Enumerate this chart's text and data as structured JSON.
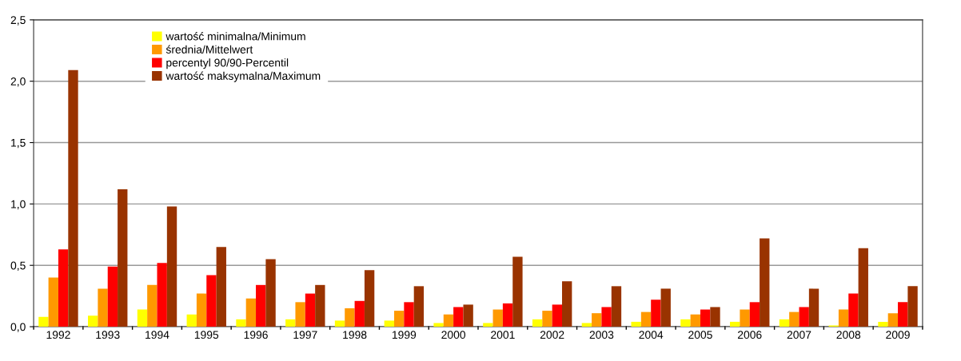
{
  "chart_data": {
    "type": "bar",
    "categories": [
      "1992",
      "1993",
      "1994",
      "1995",
      "1996",
      "1997",
      "1998",
      "1999",
      "2000",
      "2001",
      "2002",
      "2003",
      "2004",
      "2005",
      "2006",
      "2007",
      "2008",
      "2009"
    ],
    "series": [
      {
        "name": "wartość minimalna/Minimum",
        "color": "#ffff00",
        "values": [
          0.08,
          0.09,
          0.14,
          0.1,
          0.06,
          0.06,
          0.05,
          0.05,
          0.03,
          0.03,
          0.06,
          0.03,
          0.04,
          0.06,
          0.04,
          0.06,
          0.01,
          0.04
        ]
      },
      {
        "name": "średnia/Mittelwert",
        "color": "#ff9900",
        "values": [
          0.4,
          0.31,
          0.34,
          0.27,
          0.23,
          0.2,
          0.15,
          0.13,
          0.1,
          0.14,
          0.13,
          0.11,
          0.12,
          0.1,
          0.14,
          0.12,
          0.14,
          0.11
        ]
      },
      {
        "name": "percentyl 90/90-Percentil",
        "color": "#ff0000",
        "values": [
          0.63,
          0.49,
          0.52,
          0.42,
          0.34,
          0.27,
          0.21,
          0.2,
          0.16,
          0.19,
          0.18,
          0.16,
          0.22,
          0.14,
          0.2,
          0.16,
          0.27,
          0.2
        ]
      },
      {
        "name": "wartość maksymalna/Maximum",
        "color": "#993300",
        "values": [
          2.09,
          1.12,
          0.98,
          0.65,
          0.55,
          0.34,
          0.46,
          0.33,
          0.18,
          0.57,
          0.37,
          0.33,
          0.31,
          0.16,
          0.72,
          0.31,
          0.64,
          0.33
        ]
      }
    ],
    "ylim": [
      0,
      2.5
    ],
    "yticks": [
      {
        "value": 0,
        "label": "0,0"
      },
      {
        "value": 0.5,
        "label": "0,5"
      },
      {
        "value": 1.0,
        "label": "1,0"
      },
      {
        "value": 1.5,
        "label": "1,5"
      },
      {
        "value": 2.0,
        "label": "2,0"
      },
      {
        "value": 2.5,
        "label": "2,5"
      }
    ],
    "grid": "y",
    "legend": "top left"
  }
}
